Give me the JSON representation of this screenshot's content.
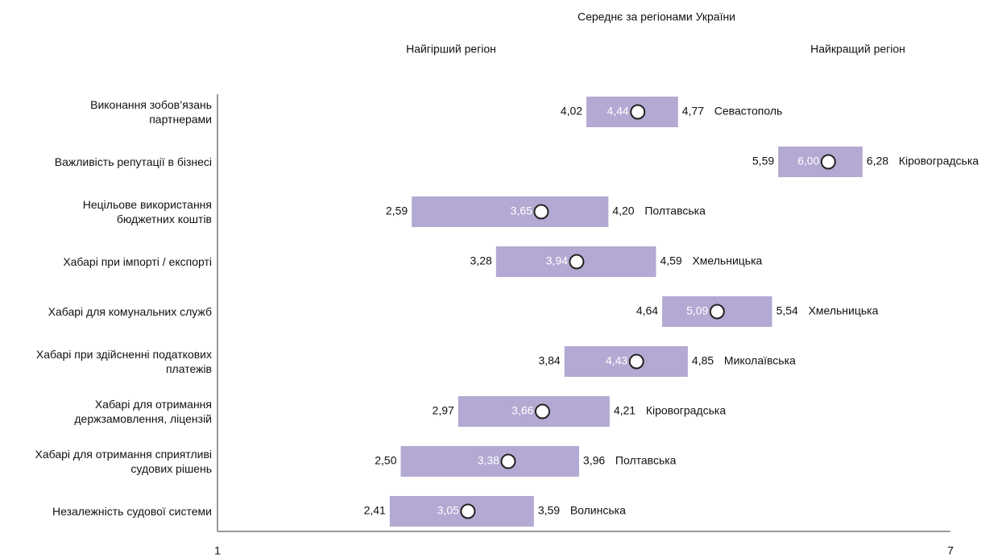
{
  "chart_data": {
    "type": "range",
    "title": "Середнє за регіонами України",
    "categories": [
      "Виконання зобов’язань партнерами",
      "Важливість репутації в бізнесі",
      "Нецільове використання бюджетних коштів",
      "Хабарі при імпорті / експорті",
      "Хабарі для комунальних служб",
      "Хабарі при здійсненні податкових платежів",
      "Хабарі для отримання держзамовлення, ліцензій",
      "Хабарі для отримання сприятливі судових рішень",
      "Незалежність судової системи"
    ],
    "series": [
      {
        "name": "Найгірший регіон",
        "color": "#b3a9d3",
        "values": [
          4.02,
          5.59,
          2.59,
          3.28,
          4.64,
          3.84,
          2.97,
          2.5,
          2.41
        ],
        "value_labels": [
          "4,02",
          "5,59",
          "2,59",
          "3,28",
          "4,64",
          "3,84",
          "2,97",
          "2,50",
          "2,41"
        ]
      },
      {
        "name": "Середнє за регіонами України",
        "color": "#ffffff",
        "values": [
          4.44,
          6.0,
          3.65,
          3.94,
          5.09,
          4.43,
          3.66,
          3.38,
          3.05
        ],
        "value_labels": [
          "4,44",
          "6,00",
          "3,65",
          "3,94",
          "5,09",
          "4,43",
          "3,66",
          "3,38",
          "3,05"
        ]
      },
      {
        "name": "Найкращий регіон",
        "color": "#b3a9d3",
        "values": [
          4.77,
          6.28,
          4.2,
          4.59,
          5.54,
          4.85,
          4.21,
          3.96,
          3.59
        ],
        "value_labels": [
          "4,77",
          "6,28",
          "4,20",
          "4,59",
          "5,54",
          "4,85",
          "4,21",
          "3,96",
          "3,59"
        ]
      }
    ],
    "best_regions": [
      "Севастополь",
      "Кіровоградська",
      "Полтавська",
      "Хмельницька",
      "Хмельницька",
      "Миколаївська",
      "Кіровоградська",
      "Полтавська",
      "Волинська"
    ],
    "xlim": [
      1,
      7
    ],
    "xticks": [
      1,
      7
    ]
  }
}
